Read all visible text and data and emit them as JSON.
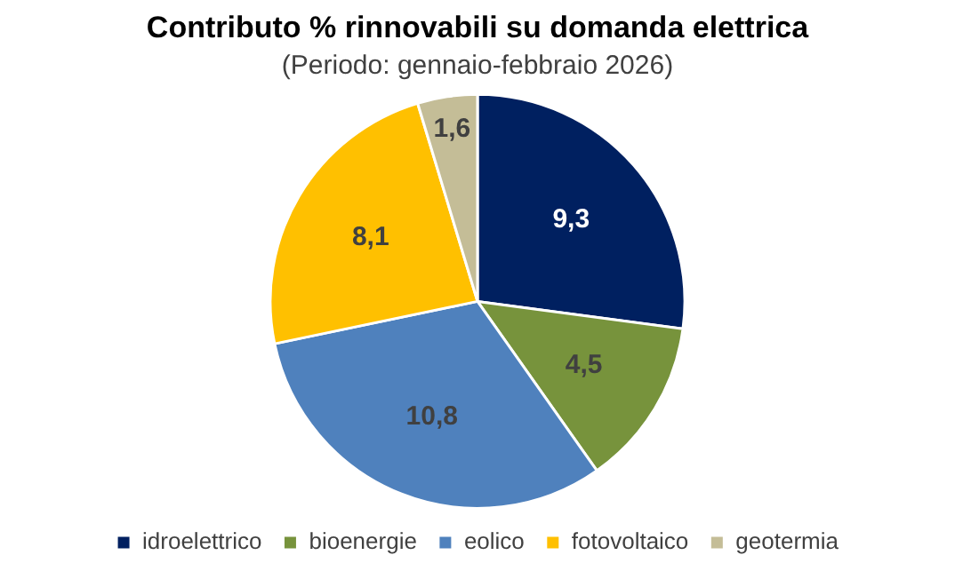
{
  "chart_data": {
    "type": "pie",
    "title": "Contributo % rinnovabili su domanda elettrica",
    "subtitle": "(Periodo: gennaio-febbraio 2026)",
    "categories": [
      "idroelettrico",
      "bioenergie",
      "eolico",
      "fotovoltaico",
      "geotermia"
    ],
    "values": [
      9.3,
      4.5,
      10.8,
      8.1,
      1.6
    ],
    "colors": [
      "#002060",
      "#77933c",
      "#4f81bd",
      "#ffc000",
      "#c4bd97"
    ],
    "value_labels": [
      "9,3",
      "4,5",
      "10,8",
      "8,1",
      "1,6"
    ],
    "legend": "bottom"
  }
}
